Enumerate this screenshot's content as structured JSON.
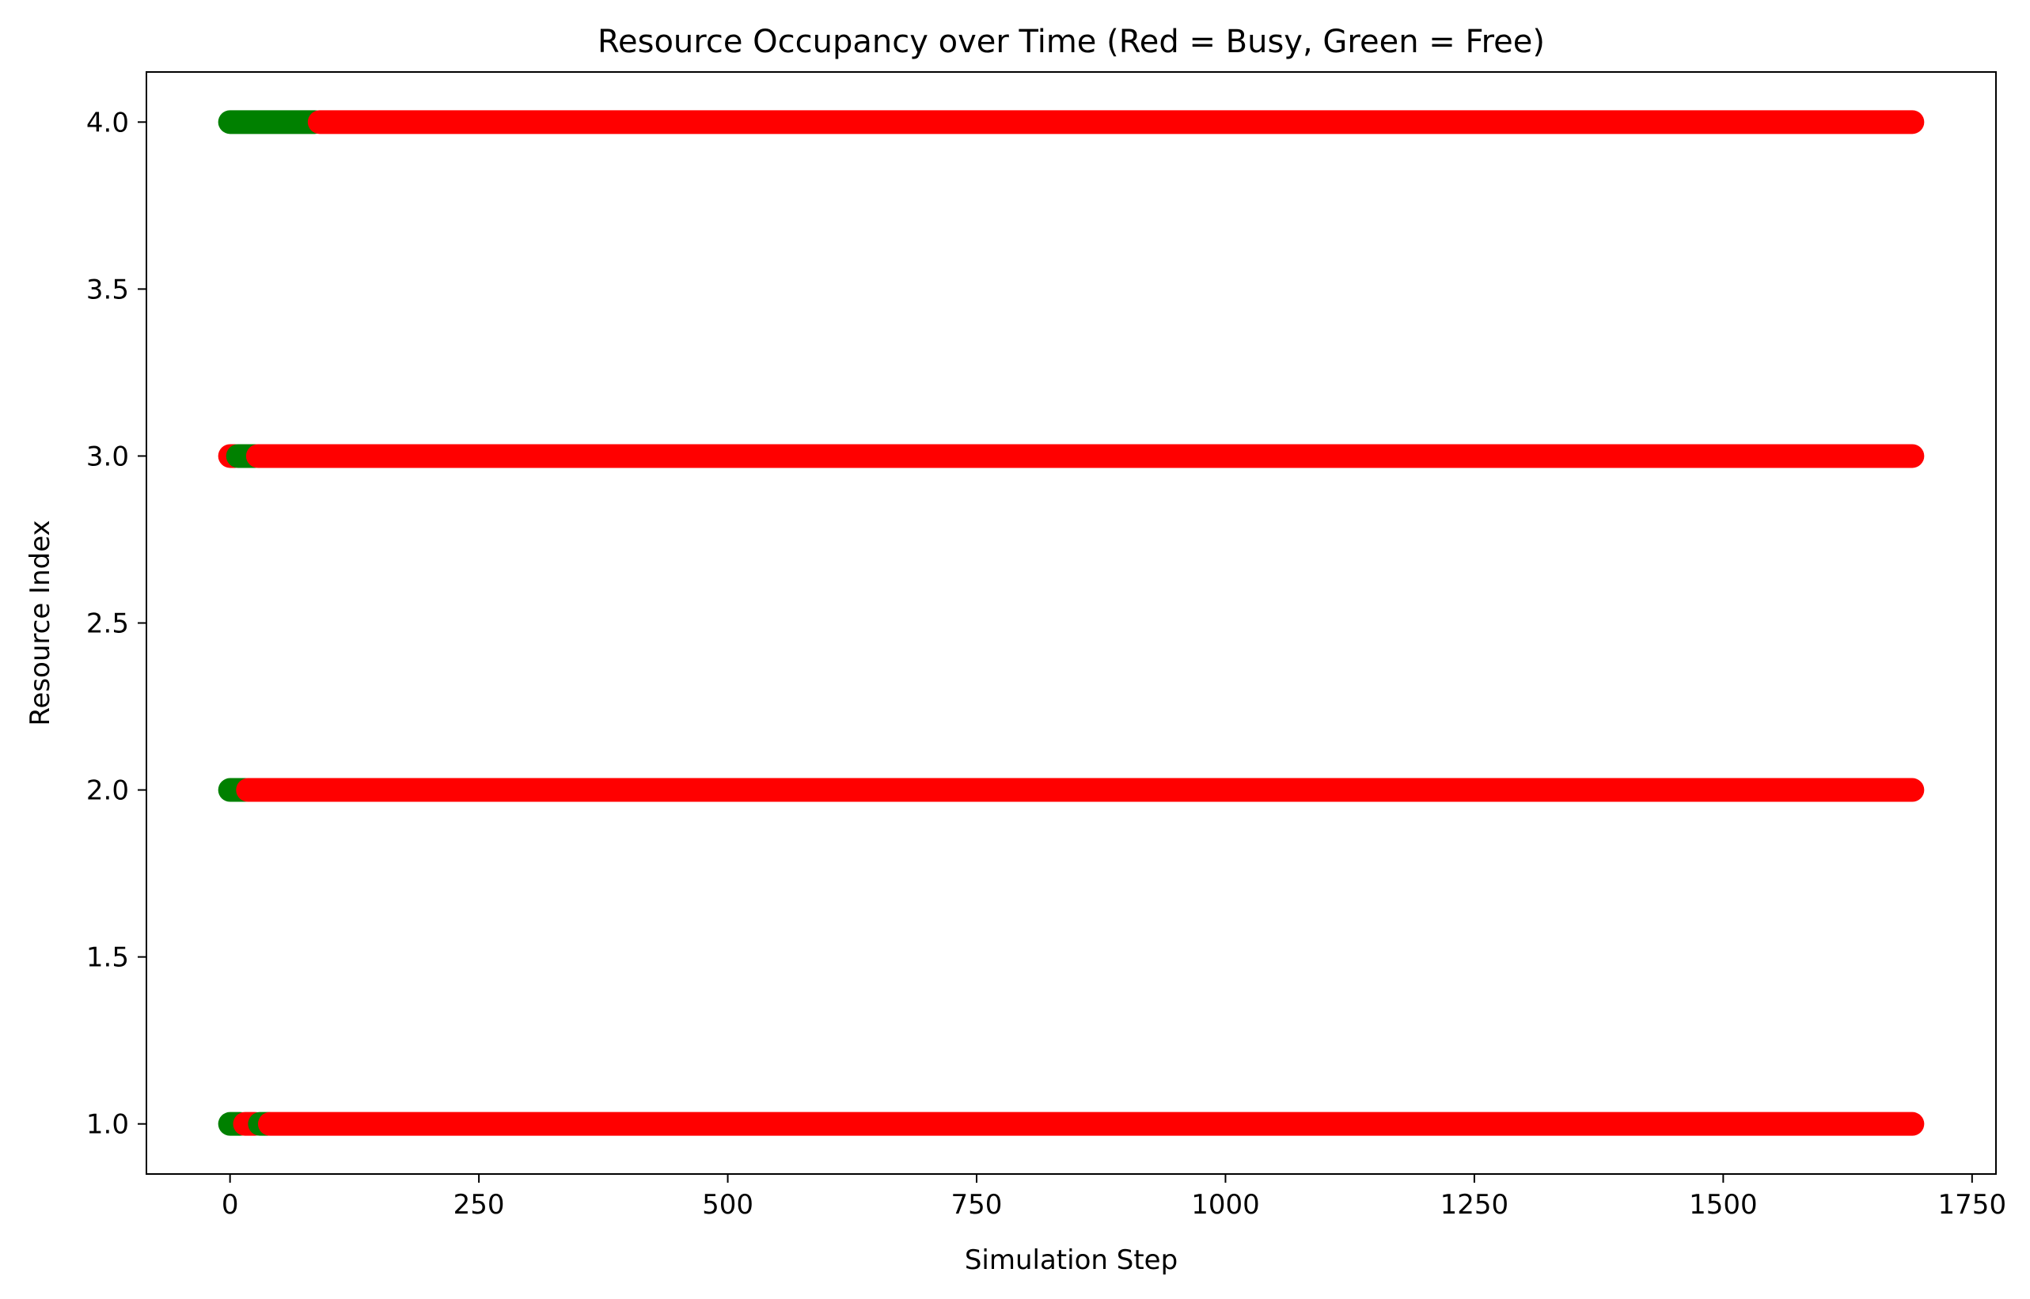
{
  "chart_data": {
    "type": "scatter",
    "title": "Resource Occupancy over Time (Red = Busy, Green = Free)",
    "xlabel": "Simulation Step",
    "ylabel": "Resource Index",
    "xlim": [
      -84,
      1774
    ],
    "ylim": [
      0.85,
      4.15
    ],
    "x_ticks": [
      0,
      250,
      500,
      750,
      1000,
      1250,
      1500,
      1750
    ],
    "x_tick_labels": [
      "0",
      "250",
      "500",
      "750",
      "1000",
      "1250",
      "1500",
      "1750"
    ],
    "y_ticks": [
      1.0,
      1.5,
      2.0,
      2.5,
      3.0,
      3.5,
      4.0
    ],
    "y_tick_labels": [
      "1.0",
      "1.5",
      "2.0",
      "2.5",
      "3.0",
      "3.5",
      "4.0"
    ],
    "grid": false,
    "colors": {
      "busy": "#ff0000",
      "free": "#008000"
    },
    "series": [
      {
        "resource": 1,
        "segments": [
          {
            "state": "free",
            "x": [
              0,
              10
            ]
          },
          {
            "state": "busy",
            "x": [
              15,
              25
            ]
          },
          {
            "state": "free",
            "x": [
              30,
              38
            ]
          },
          {
            "state": "busy",
            "x": [
              40,
              1690
            ]
          }
        ]
      },
      {
        "resource": 2,
        "segments": [
          {
            "state": "free",
            "x": [
              0,
              15
            ]
          },
          {
            "state": "busy",
            "x": [
              18,
              1690
            ]
          }
        ]
      },
      {
        "resource": 3,
        "segments": [
          {
            "state": "busy",
            "x": [
              0,
              5
            ]
          },
          {
            "state": "free",
            "x": [
              8,
              25
            ]
          },
          {
            "state": "busy",
            "x": [
              28,
              1690
            ]
          }
        ]
      },
      {
        "resource": 4,
        "segments": [
          {
            "state": "free",
            "x": [
              0,
              85
            ]
          },
          {
            "state": "busy",
            "x": [
              90,
              1690
            ]
          }
        ]
      }
    ]
  }
}
